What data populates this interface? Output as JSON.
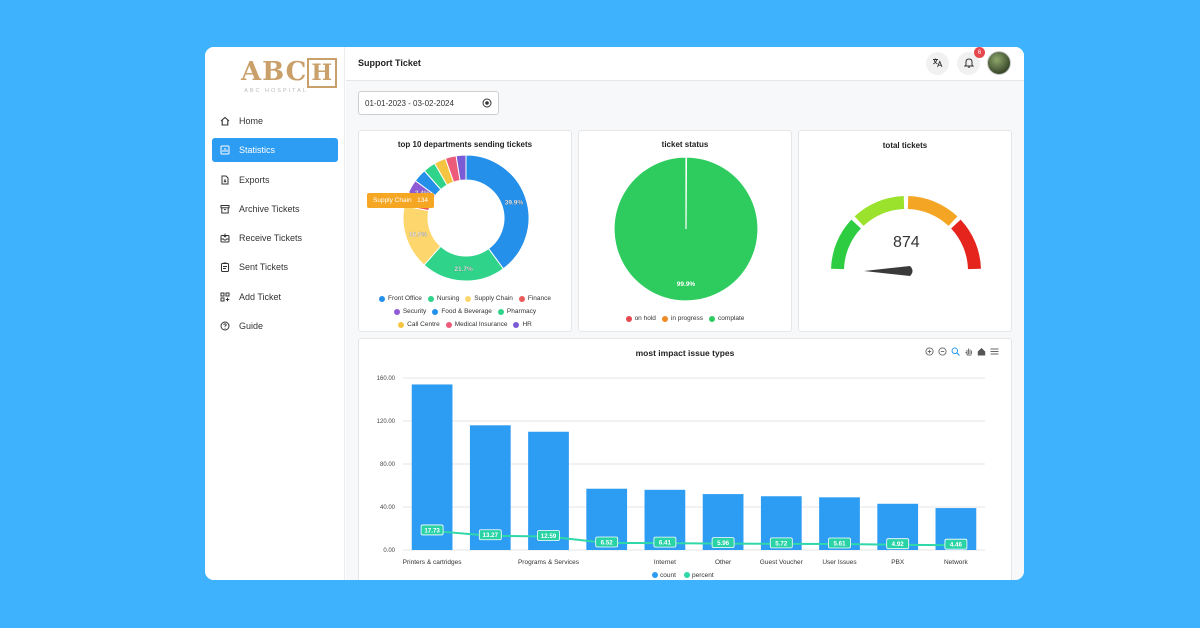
{
  "app": {
    "logo_text": "ABCH",
    "logo_sub": "ABC HOSPITAL"
  },
  "header": {
    "title": "Support Ticket",
    "notification_count": "6"
  },
  "sidebar": {
    "items": [
      {
        "label": "Home",
        "icon": "home-icon",
        "active": false
      },
      {
        "label": "Statistics",
        "icon": "statistics-icon",
        "active": true
      },
      {
        "label": "Exports",
        "icon": "export-icon",
        "active": false
      },
      {
        "label": "Archive Tickets",
        "icon": "archive-icon",
        "active": false
      },
      {
        "label": "Receive Tickets",
        "icon": "inbox-icon",
        "active": false
      },
      {
        "label": "Sent Tickets",
        "icon": "clipboard-icon",
        "active": false
      },
      {
        "label": "Add Ticket",
        "icon": "add-grid-icon",
        "active": false
      },
      {
        "label": "Guide",
        "icon": "help-icon",
        "active": false
      }
    ]
  },
  "filters": {
    "date_range": "01-01-2023 - 03-02-2024"
  },
  "colors": {
    "accent": "#2d9cf3",
    "background": "#3eb2fc"
  },
  "departments": {
    "title": "top 10 departments sending tickets",
    "tooltip": {
      "label": "Supply Chain",
      "value": "134"
    },
    "legend": [
      "Front Office",
      "Nursing",
      "Supply Chain",
      "Finance",
      "Security",
      "Food & Beverage",
      "Pharmacy",
      "Call Centre",
      "Medical Insurance",
      "HR"
    ],
    "slice_labels": [
      "39.9%",
      "21.7%",
      "16.5%",
      "3.5%",
      "3.4%"
    ],
    "chart_data": {
      "type": "pie",
      "categories": [
        "Front Office",
        "Nursing",
        "Supply Chain",
        "Finance",
        "Security",
        "Food & Beverage",
        "Pharmacy",
        "Call Centre",
        "Medical Insurance",
        "HR"
      ],
      "values": [
        39.9,
        21.7,
        16.5,
        3.5,
        3.5,
        3.4,
        3.2,
        3.0,
        2.8,
        2.5
      ],
      "colors": [
        "#2490ea",
        "#2fd38a",
        "#fdd76e",
        "#ea5a5a",
        "#8e5ad6",
        "#2490ea",
        "#2fd38a",
        "#f5c542",
        "#ec5b7a",
        "#7b5ad6"
      ]
    }
  },
  "status": {
    "title": "ticket status",
    "slice_label": "99.9%",
    "legend": [
      "on hold",
      "in progress",
      "complate"
    ],
    "chart_data": {
      "type": "pie",
      "categories": [
        "on hold",
        "in progress",
        "complate"
      ],
      "values": [
        0.05,
        0.05,
        99.9
      ],
      "colors": [
        "#e5484d",
        "#f08a24",
        "#2ecc5e"
      ]
    }
  },
  "total": {
    "title": "total tickets",
    "value": "874",
    "chart_data": {
      "type": "gauge",
      "value": 874,
      "colors": [
        "#2ecc40",
        "#9be22c",
        "#f5a524",
        "#e5241e"
      ]
    }
  },
  "impact": {
    "title": "most impact issue types",
    "legend": [
      "count",
      "percent"
    ],
    "chart_data": {
      "type": "bar",
      "categories": [
        "Printers & cartridges",
        "",
        "Programs & Services",
        "",
        "Internet",
        "Other",
        "Guest Voucher",
        "User Issues",
        "PBX",
        "Network"
      ],
      "series": [
        {
          "name": "count",
          "values": [
            154,
            116,
            110,
            57,
            56,
            52,
            50,
            49,
            43,
            39
          ],
          "color": "#2d9cf3"
        },
        {
          "name": "percent",
          "values": [
            17.73,
            13.27,
            12.59,
            6.52,
            6.41,
            5.96,
            5.72,
            5.61,
            4.92,
            4.46
          ],
          "color": "#2fd8a8"
        }
      ],
      "yticks": [
        "0.00",
        "40.00",
        "80.00",
        "120.00",
        "160.00"
      ],
      "ylim": [
        0,
        160
      ]
    }
  }
}
